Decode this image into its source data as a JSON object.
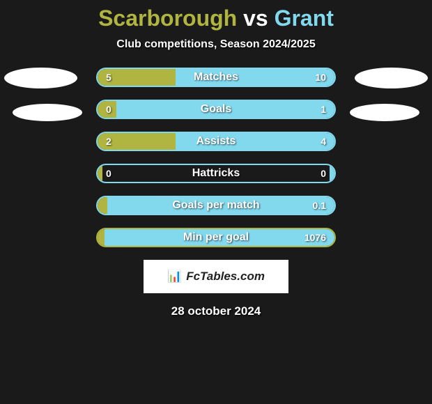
{
  "title": {
    "player1": "Scarborough",
    "vs": "vs",
    "player2": "Grant",
    "player1_color": "#afb540",
    "player2_color": "#82d9ee"
  },
  "subtitle": "Club competitions, Season 2024/2025",
  "colors": {
    "left_fill": "#afb540",
    "right_fill": "#82d9ee",
    "border_p1": "#afb540",
    "border_p2": "#82d9ee",
    "background": "#1a1a1a"
  },
  "bars": [
    {
      "label": "Matches",
      "left": "5",
      "right": "10",
      "left_pct": 33,
      "right_pct": 67,
      "border": "p2"
    },
    {
      "label": "Goals",
      "left": "0",
      "right": "1",
      "left_pct": 8,
      "right_pct": 92,
      "border": "p2"
    },
    {
      "label": "Assists",
      "left": "2",
      "right": "4",
      "left_pct": 33,
      "right_pct": 67,
      "border": "p2"
    },
    {
      "label": "Hattricks",
      "left": "0",
      "right": "0",
      "left_pct": 2,
      "right_pct": 2,
      "border": "p2"
    },
    {
      "label": "Goals per match",
      "left": "",
      "right": "0.1",
      "left_pct": 4,
      "right_pct": 96,
      "border": "p2"
    },
    {
      "label": "Min per goal",
      "left": "",
      "right": "1076",
      "left_pct": 3,
      "right_pct": 97,
      "border": "p1"
    }
  ],
  "brand": {
    "icon": "📊",
    "text": "FcTables.com"
  },
  "date": "28 october 2024",
  "decor": {
    "ellipse_color": "#ffffff"
  }
}
